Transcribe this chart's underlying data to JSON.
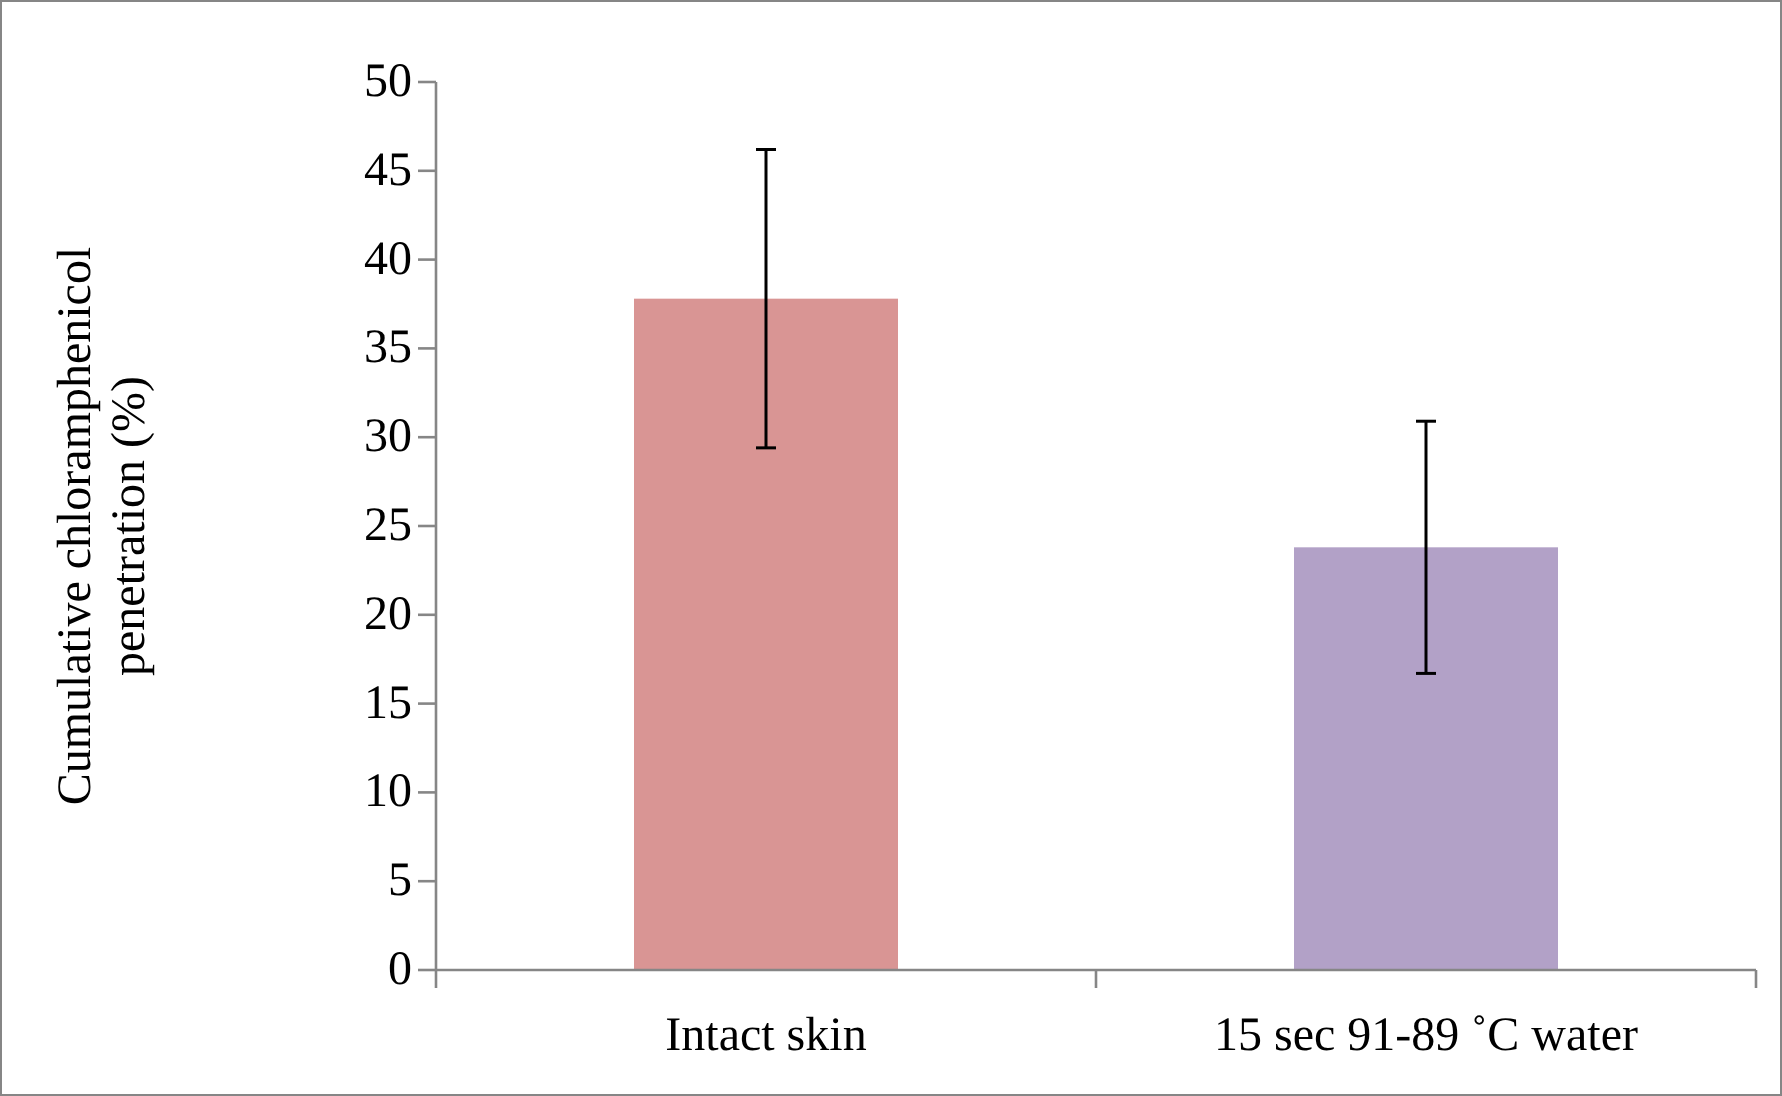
{
  "chart_data": {
    "type": "bar",
    "ylabel": "Cumulative chloramphenicol penetration (%)",
    "categories": [
      "Intact skin",
      "15 sec 91-89 ˚C  water"
    ],
    "values": [
      37.8,
      23.8
    ],
    "colors": [
      "#d99594",
      "#b2a1c7"
    ],
    "errors": [
      8.4,
      7.1
    ],
    "ylim": [
      0,
      50
    ],
    "yticks": [
      0,
      5,
      10,
      15,
      20,
      25,
      30,
      35,
      40,
      45,
      50
    ],
    "grid": false
  }
}
